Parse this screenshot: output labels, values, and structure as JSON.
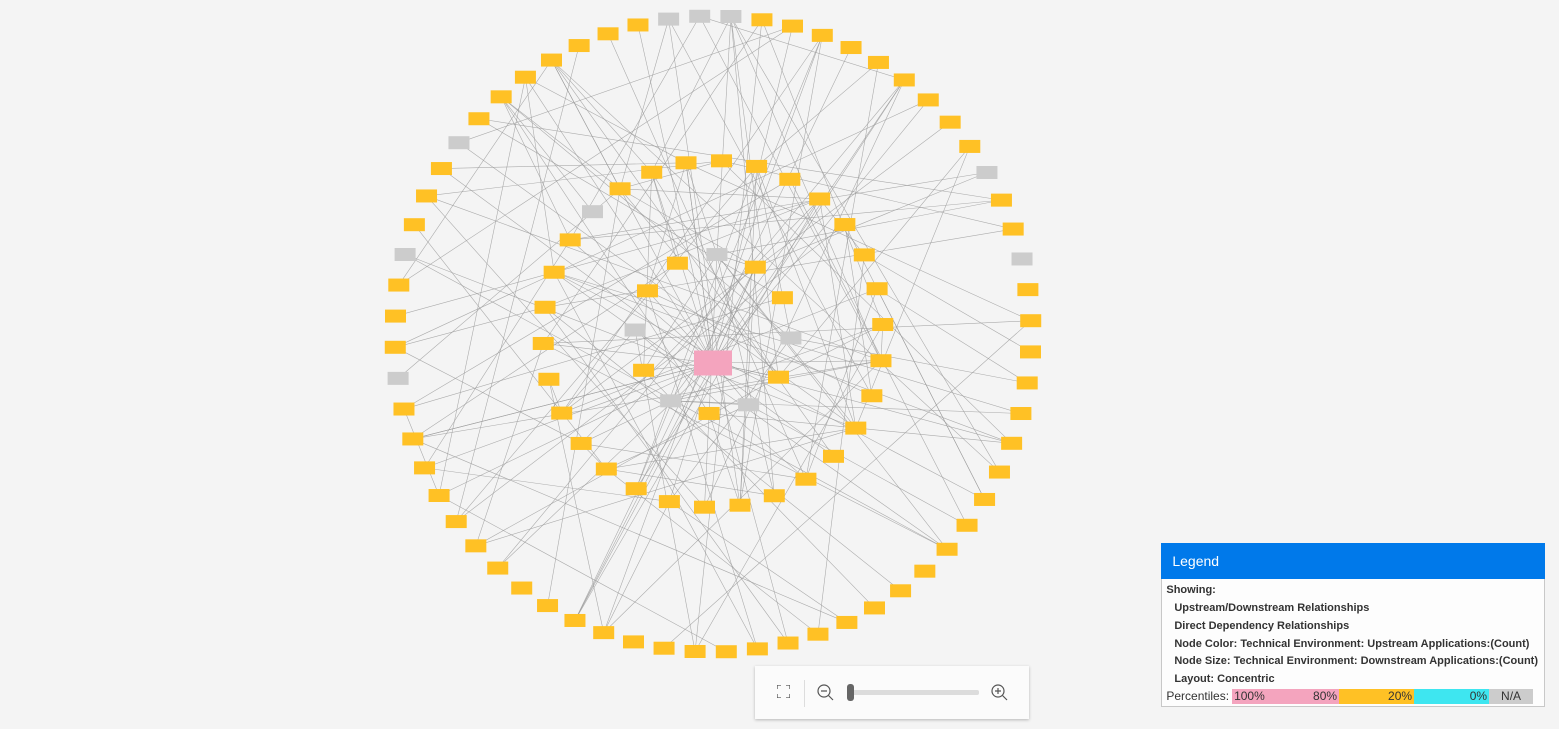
{
  "graph": {
    "layout": "concentric",
    "center_node_color": "#f4a4be",
    "colors": {
      "orange": "#ffc125",
      "gray": "#cccccc",
      "pink": "#f4a4be",
      "edge": "#9a9a9a"
    }
  },
  "legend": {
    "title": "Legend",
    "showing_label": "Showing:",
    "items": [
      "Upstream/Downstream Relationships",
      "Direct Dependency Relationships",
      "Node Color: Technical Environment: Upstream Applications:(Count)",
      "Node Size: Technical Environment: Downstream Applications:(Count)",
      "Layout: Concentric"
    ],
    "percentiles_label": "Percentiles:",
    "percentiles": [
      {
        "left": "100%",
        "right": "80%",
        "color": "#f4a4be"
      },
      {
        "left": "",
        "right": "20%",
        "color": "#ffc125"
      },
      {
        "left": "",
        "right": "0%",
        "color": "#3ee6f0"
      },
      {
        "left": "N/A",
        "right": "",
        "color": "#cccccc"
      }
    ]
  },
  "zoom_controls": {
    "zoom_level": 0
  }
}
